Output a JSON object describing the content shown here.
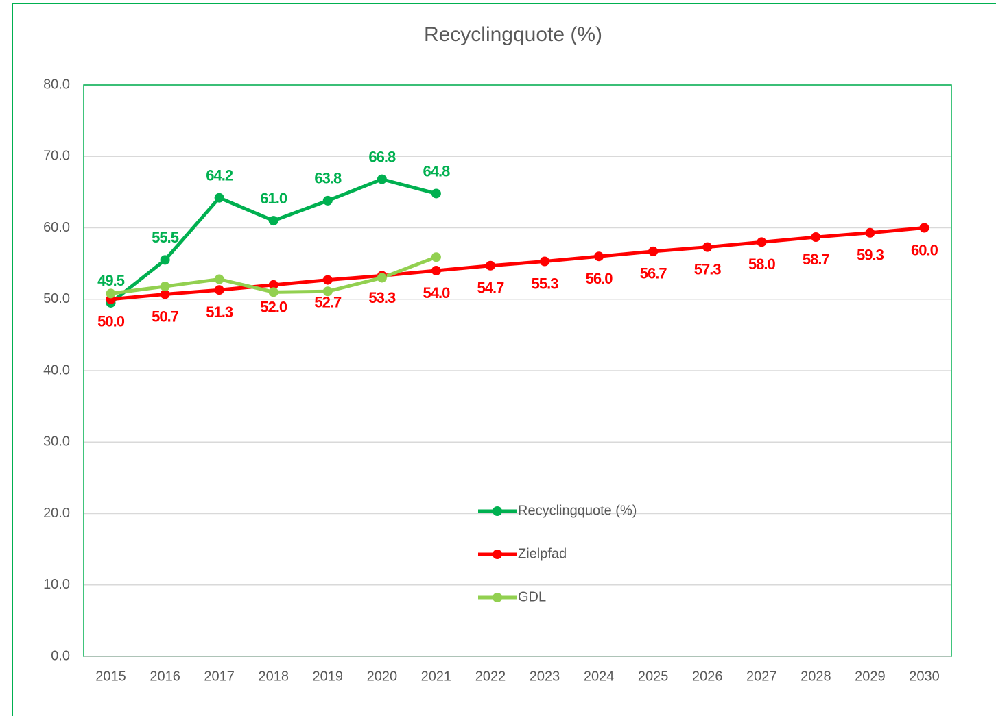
{
  "chart_data": {
    "type": "line",
    "title": "Recyclingquote (%)",
    "categories": [
      "2015",
      "2016",
      "2017",
      "2018",
      "2019",
      "2020",
      "2021",
      "2022",
      "2023",
      "2024",
      "2025",
      "2026",
      "2027",
      "2028",
      "2029",
      "2030"
    ],
    "series": [
      {
        "name": "Recyclingquote (%)",
        "color": "#00b050",
        "values": [
          49.5,
          55.5,
          64.2,
          61.0,
          63.8,
          66.8,
          64.8,
          null,
          null,
          null,
          null,
          null,
          null,
          null,
          null,
          null
        ],
        "value_labels": [
          "49.5",
          "55.5",
          "64.2",
          "61.0",
          "63.8",
          "66.8",
          "64.8",
          null,
          null,
          null,
          null,
          null,
          null,
          null,
          null,
          null
        ]
      },
      {
        "name": "Zielpfad",
        "color": "#ff0000",
        "values": [
          50.0,
          50.7,
          51.3,
          52.0,
          52.7,
          53.3,
          54.0,
          54.7,
          55.3,
          56.0,
          56.7,
          57.3,
          58.0,
          58.7,
          59.3,
          60.0
        ],
        "value_labels": [
          "50.0",
          "50.7",
          "51.3",
          "52.0",
          "52.7",
          "53.3",
          "54.0",
          "54.7",
          "55.3",
          "56.0",
          "56.7",
          "57.3",
          "58.0",
          "58.7",
          "59.3",
          "60.0"
        ]
      },
      {
        "name": "GDL",
        "color": "#92d050",
        "values": [
          50.8,
          51.8,
          52.8,
          51.0,
          51.1,
          53.0,
          55.9,
          null,
          null,
          null,
          null,
          null,
          null,
          null,
          null,
          null
        ]
      }
    ],
    "ylim": [
      0,
      80
    ],
    "yticks": [
      {
        "value": 0,
        "label": "0.0"
      },
      {
        "value": 10,
        "label": "10.0"
      },
      {
        "value": 20,
        "label": "20.0"
      },
      {
        "value": 30,
        "label": "30.0"
      },
      {
        "value": 40,
        "label": "40.0"
      },
      {
        "value": 50,
        "label": "50.0"
      },
      {
        "value": 60,
        "label": "60.0"
      },
      {
        "value": 70,
        "label": "70.0"
      },
      {
        "value": 80,
        "label": "80.0"
      }
    ],
    "grid": true,
    "legend": "center"
  }
}
